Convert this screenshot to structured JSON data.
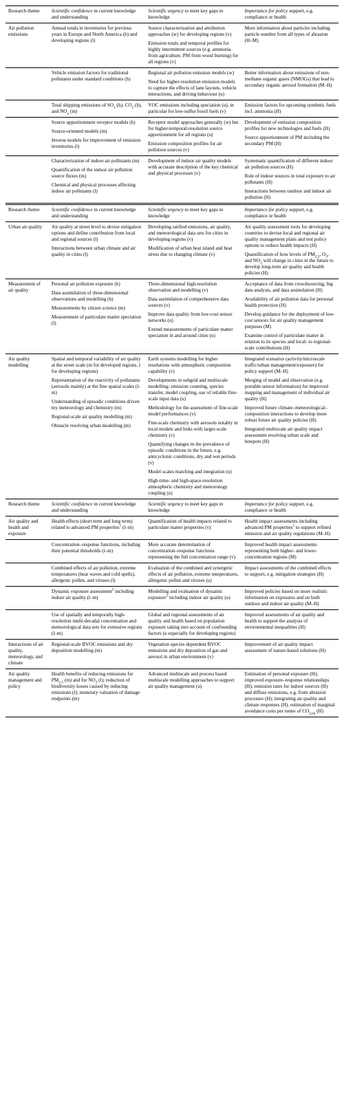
{
  "headers": {
    "theme": "Research theme",
    "conf_it": "Scientific confidence",
    "conf_rest": " in current knowledge and understanding",
    "urg_it": "Scientific urgency",
    "urg_rest": " to meet key gaps in knowledge",
    "pol_it": "Importance for policy",
    "pol_rest": " support, e.g. compliance or health"
  },
  "sections": [
    {
      "headerStyle": "single",
      "rows": [
        {
          "theme": "Air pollution emissions",
          "conf": [
            "Annual totals in inventories for previous years in Europe and North America (h) and developing regions (l)"
          ],
          "urg": [
            "Source characterization and attribution approaches (w) for developing regions (v)",
            "Emission totals and temporal profiles for highly intermittent sources (e.g. ammonia from agriculture, PM from wood burning) for all regions (v)"
          ],
          "pol": [
            "More information about particles including particle number from all types of abrasion (H–M)"
          ]
        },
        {
          "conf": [
            "Vehicle emission factors for traditional pollutants under standard conditions (h)"
          ],
          "urg": [
            "Regional air pollution emission models (w)",
            "Need for higher-resolution emission models to capture the effects of lane layouts, vehicle interactions, and driving behaviour (u)"
          ],
          "pol": [
            "Better information about emissions of non-methane organic gases (NMOGs) that lead to secondary organic aerosol formation (M–H)"
          ]
        },
        {
          "conf": [
            "Total shipping emissions of SO<sub>x</sub> (h), CO<sub>2</sub> (h), and NO<sub>x</sub> (m)"
          ],
          "urg": [
            "VOC emissions including speciation (u), in particular for low-sulfur fossil fuels (v)"
          ],
          "pol": [
            "Emission factors for upcoming synthetic fuels incl. ammonia (H)"
          ]
        },
        {
          "conf": [
            "Source apportionment receptor models (h)",
            "Source-oriented models (m)",
            "Inverse models for improvement of emission inventories (l)"
          ],
          "urg": [
            "Receptor model approaches generally (w) but for higher-temporal-resolution source apportionment for all regions (u)",
            "Emission composition profiles for air pollution sources (v)"
          ],
          "pol": [
            "Development of emission composition profiles for new technologies and fuels (H)",
            "Source apportionment of PM including the secondary PM (H)"
          ]
        },
        {
          "conf": [
            "Characterization of indoor air pollutants (m)",
            "Quantification of the indoor air pollution source fluxes (m)",
            "Chemical and physical processes affecting indoor air pollutants (l)"
          ],
          "urg": [
            "Development of indoor air quality models with accurate description of the key chemical and physical processes (v)"
          ],
          "pol": [
            "Systematic quantification of different indoor air pollution sources (H)",
            "Role of indoor sources in total exposure to air pollutants (H)",
            "Interactions between outdoor and indoor air pollution (H)"
          ],
          "sectionEnd": true
        }
      ]
    },
    {
      "headerStyle": "double",
      "rows": [
        {
          "theme": "Urban air quality",
          "conf": [
            "Air quality at street level to devise mitigation options and define contribution from local and regional sources (l)",
            "Interactions between urban climate and air quality in cities (l)"
          ],
          "urg": [
            "Developing ratified emissions, air quality, and meteorological data sets for cities in developing regions (v)",
            "Modification of urban heat island and heat stress due to changing climate (v)"
          ],
          "pol": [
            "Air quality assessment tools for developing countries to devise local and regional air quality management plans and test policy options to reduce health impacts (H)",
            "Quantification of how levels of PM<sub>2.5</sub>, O<sub>3</sub>, and NO<sub>2</sub> will change in cities in the future to develop long-term air quality and health policies (H)"
          ]
        },
        {
          "theme": "Measurement of air quality",
          "conf": [
            "Personal air pollution exposure (h)",
            "Data assimilation of three-dimensional observations and modelling (h)",
            "Measurements by citizen science (m)",
            "Measurement of particulate matter speciation (l)"
          ],
          "urg": [
            "Three-dimensional high-resolution observation and modelling (v)",
            "Data assimilation of comprehensive data sources (v)",
            "Improve data quality from low-cost sensor networks (u)",
            "Extend measurements of particulate matter speciation in and around cities (u)"
          ],
          "pol": [
            "Acceptance of data from crowdsourcing, big data analysis, and data assimilation (H)",
            "Availability of air pollution data for personal health protection (H)",
            "Develop guidance for the deployment of low-cost sensors for air quality management purposes (M)",
            "Examine control of particulate matter in relation to its species and local- to regional-scale contributions (H)"
          ]
        },
        {
          "theme": "Air quality modelling",
          "conf": [
            "Spatial and temporal variability of air quality at the street scale (m for developed regions, l for developing regions)",
            "Representation of the reactivity of pollutants (aerosols mainly) at the fine spatial scales (l–m)",
            "Understanding of episodic conditions driven my meteorology and chemistry (m)",
            "Regional-scale air quality modelling (m)",
            "Obstacle resolving urban modelling (m)"
          ],
          "urg": [
            "Earth systems modelling for higher resolutions with atmospheric composition capability (v)",
            "Developments in subgrid and multiscale modelling: emission counting, species transfer, model coupling, use of reliable fine-scale input data (u)",
            "Methodology for the assessment of fine-scale model performances (v)",
            "Fine-scale chemistry with aerosols notably in local models and links with larger-scale chemistry (v)",
            "Quantifying changes in the prevalence of episodic conditions in the future, e.g. anticyclonic conditions, dry and wet periods (v)",
            "Model scales matching and integration (u)",
            "High-time- and high-space-resolution atmospheric chemistry and meteorology coupling (u)"
          ],
          "pol": [
            "Integrated scenarios (activity/microscale traffic/urban management/exposure) for policy support (M–H)",
            "Merging of model and observation (e.g. portable sensor information) for improved mapping and management of individual air quality (H)",
            "Improved future climate–meteorological–composition interactions to develop more robust future air quality policies (H)",
            "Integrated multiscale air quality impact assessment resolving urban scale and hotspots (H)"
          ],
          "sectionEnd": true
        }
      ]
    },
    {
      "headerStyle": "single",
      "rows": [
        {
          "theme": "Air quality and health and exposure",
          "conf": [
            "Health effects (short term and long term) related to advanced PM properties<sup>1</sup> (l–m)"
          ],
          "urg": [
            "Quantification of health impacts related to particulate matter properties (v)"
          ],
          "pol": [
            "Health impact assessments including advanced PM properties<sup>1</sup> to support refined emission and air quality regulations (M–H)"
          ]
        },
        {
          "conf": [
            "Concentration–response functions, including their potential thresholds (l–m)"
          ],
          "urg": [
            "More accurate determination of concentration–response functions representing the full concentration range (v)"
          ],
          "pol": [
            "Improved health impact assessments representing both higher- and lower-concentration regions (M)"
          ]
        },
        {
          "conf": [
            "Combined effects of air pollution, extreme temperatures (heat waves and cold spells), allergenic pollen, and viruses (l)"
          ],
          "urg": [
            "Evaluation of the combined and synergetic effects of air pollution, extreme temperatures, allergenic pollen and viruses (u)"
          ],
          "pol": [
            "Impact assessments of the combined effects to support, e.g. mitigation strategies (H)"
          ]
        },
        {
          "conf": [
            "Dynamic exposure assessment<sup>2</sup> including indoor air quality (l–m)"
          ],
          "urg": [
            "Modelling and evaluation of dynamic exposure<sup>2</sup> including indoor air quality (u)"
          ],
          "pol": [
            "Improved policies based on more realistic information on exposures and on both outdoor and indoor air quality (M–H)"
          ]
        },
        {
          "conf": [
            "Use of spatially and temporally high-resolution multi-decadal concentration and meteorological data sets for extensive regions (l–m)"
          ],
          "urg": [
            "Global and regional assessments of air quality and health based on population exposure taking into account of confounding factors (u especially for developing regions)"
          ],
          "pol": [
            "Improved assessments of air quality and health to support the analysis of environmental inequalities (H)"
          ]
        },
        {
          "theme": "Interactions of air quality, meteorology, and climate",
          "conf": [
            "Regional-scale BVOC emissions and dry deposition modelling (m)"
          ],
          "urg": [
            "Vegetation species dependent BVOC emissions and dry deposition of gas and aerosol in urban environment (v)"
          ],
          "pol": [
            "Improvement of air quality impact assessment of nature-based solutions (H)"
          ]
        },
        {
          "theme": "Air quality management and policy",
          "conf": [
            "Health benefits of reducing emissions for PM<sub>2.5</sub> (m) and for NO<sub>2</sub> (l); reduction of biodiversity losses caused by reducing emissions (l); monetary valuation of damage endpoints (m)"
          ],
          "urg": [
            "Advanced multiscale and process based multiscale modelling approaches to support air quality management (u)"
          ],
          "pol": [
            "Estimation of personal exposure (H); improved exposure–response relationships (H); emission rates for indoor sources (H) and diffuse emissions, e.g. from abrasion processes (H); integrating air quality and climate responses (H), estimation of marginal avoidance costs per tonne of CO<sub>2,eq</sub> (H)"
          ],
          "sectionEnd": true
        }
      ]
    }
  ]
}
